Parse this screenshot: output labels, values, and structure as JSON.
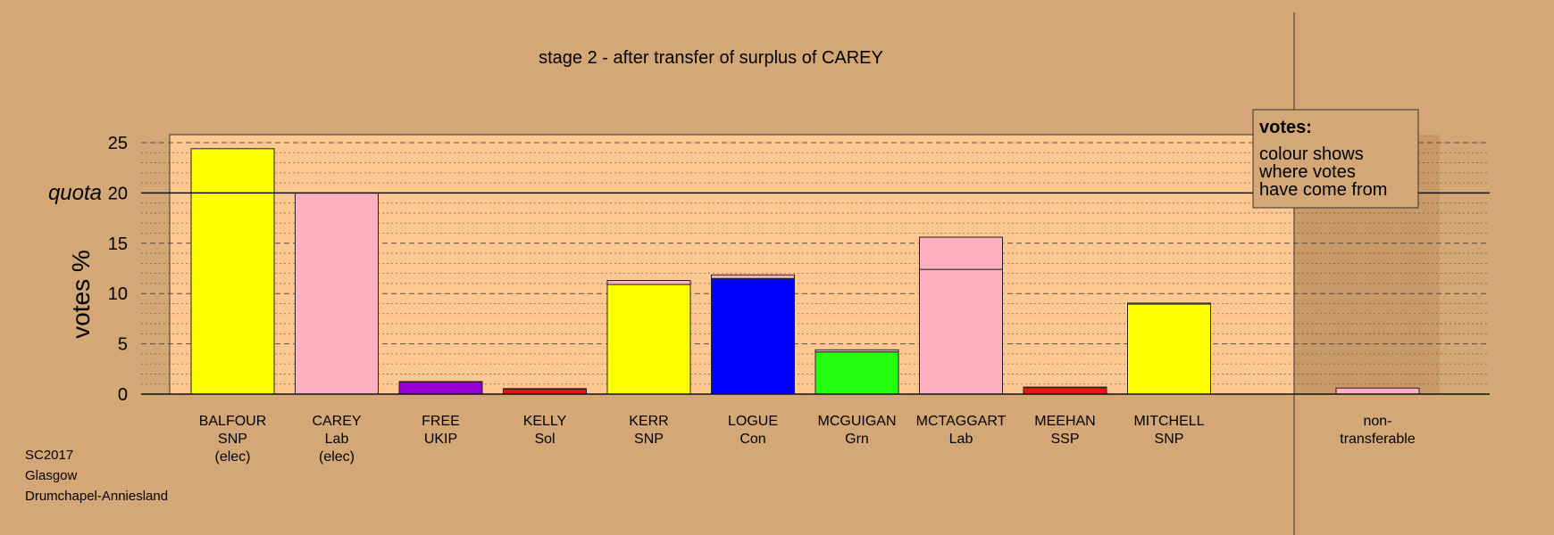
{
  "chart_data": {
    "type": "bar",
    "title": "stage 2 - after transfer of surplus of CAREY",
    "ylabel": "votes %",
    "quota_label": "quota",
    "quota": 20,
    "ylim": [
      0,
      25.8
    ],
    "yticks": [
      0,
      5,
      10,
      15,
      20,
      25
    ],
    "grid": true,
    "candidates": [
      {
        "name": "BALFOUR",
        "party": "SNP",
        "status": "(elec)",
        "color": "#ffff00",
        "segments": [
          {
            "value": 24.4,
            "color": "#ffff00"
          }
        ]
      },
      {
        "name": "CAREY",
        "party": "Lab",
        "status": "(elec)",
        "color": "#ffb0c0",
        "segments": [
          {
            "value": 20.0,
            "color": "#ffb0c0"
          }
        ]
      },
      {
        "name": "FREE",
        "party": "UKIP",
        "status": "",
        "color": "#9400d3",
        "segments": [
          {
            "value": 1.2,
            "color": "#9400d3"
          },
          {
            "value": 0.05,
            "color": "#ffb0c0"
          }
        ]
      },
      {
        "name": "KELLY",
        "party": "Sol",
        "status": "",
        "color": "#ee1111",
        "segments": [
          {
            "value": 0.5,
            "color": "#ee1111"
          },
          {
            "value": 0.05,
            "color": "#ffb0c0"
          }
        ]
      },
      {
        "name": "KERR",
        "party": "SNP",
        "status": "",
        "color": "#ffff00",
        "segments": [
          {
            "value": 10.9,
            "color": "#ffff00"
          },
          {
            "value": 0.4,
            "color": "#ffb0c0"
          }
        ]
      },
      {
        "name": "LOGUE",
        "party": "Con",
        "status": "",
        "color": "#0000ff",
        "segments": [
          {
            "value": 11.5,
            "color": "#0000ff"
          },
          {
            "value": 0.35,
            "color": "#ffb0c0"
          }
        ]
      },
      {
        "name": "MCGUIGAN",
        "party": "Grn",
        "status": "",
        "color": "#22ff11",
        "segments": [
          {
            "value": 4.2,
            "color": "#22ff11"
          },
          {
            "value": 0.2,
            "color": "#ffb0c0"
          }
        ]
      },
      {
        "name": "MCTAGGART",
        "party": "Lab",
        "status": "",
        "color": "#ffb0c0",
        "segments": [
          {
            "value": 12.4,
            "color": "#ffb0c0"
          },
          {
            "value": 3.2,
            "color": "#ffb0c0"
          }
        ]
      },
      {
        "name": "MEEHAN",
        "party": "SSP",
        "status": "",
        "color": "#ee1111",
        "segments": [
          {
            "value": 0.65,
            "color": "#ee1111"
          },
          {
            "value": 0.05,
            "color": "#ffb0c0"
          }
        ]
      },
      {
        "name": "MITCHELL",
        "party": "SNP",
        "status": "",
        "color": "#ffff00",
        "segments": [
          {
            "value": 8.95,
            "color": "#ffff00"
          },
          {
            "value": 0.1,
            "color": "#ffb0c0"
          }
        ]
      }
    ],
    "nontransferable": {
      "label_line1": "non-",
      "label_line2": "transferable",
      "value": 0.6,
      "color": "#ffb0c0"
    },
    "legend": {
      "title": "votes:",
      "lines": [
        "colour shows",
        "where votes",
        "have come from"
      ],
      "placement": "top-right"
    }
  },
  "footer": {
    "code": "SC2017",
    "region": "Glasgow",
    "constituency": "Drumchapel-Anniesland"
  },
  "colors": {
    "background": "#d4a876",
    "plot_area": "#ffc891",
    "right_band": "#c89a68"
  }
}
